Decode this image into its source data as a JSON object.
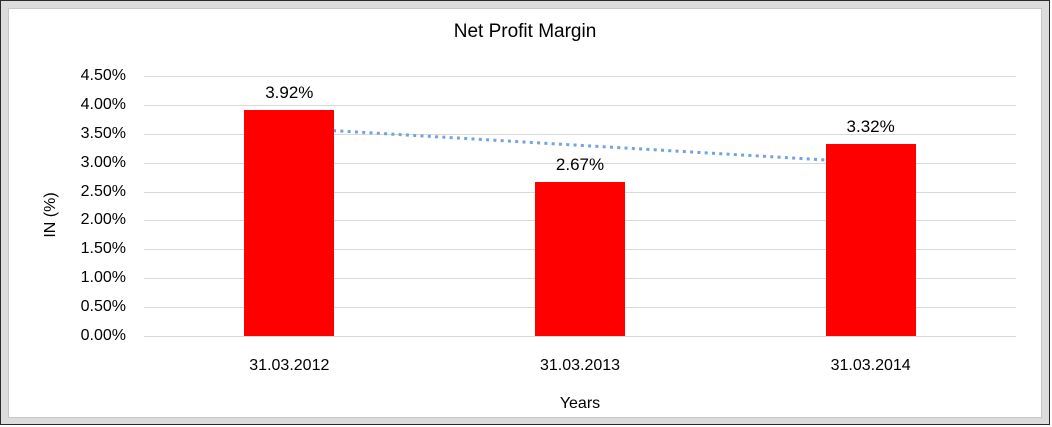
{
  "chart_data": {
    "type": "bar",
    "title": "Net Profit Margin",
    "categories": [
      "31.03.2012",
      "31.03.2013",
      "31.03.2014"
    ],
    "values": [
      3.92,
      2.67,
      3.32
    ],
    "data_labels": [
      "3.92%",
      "2.67%",
      "3.32%"
    ],
    "xlabel": "Years",
    "ylabel": "IN (%)",
    "ylim": [
      0,
      4.5
    ],
    "ytick_step": 0.5,
    "ytick_labels": [
      "0.00%",
      "0.50%",
      "1.00%",
      "1.50%",
      "2.00%",
      "2.50%",
      "3.00%",
      "3.50%",
      "4.00%",
      "4.50%"
    ],
    "grid": true,
    "legend": "none",
    "bar_color": "#ff0000",
    "gridline_color": "#d9d9d9",
    "trendline": {
      "type": "linear",
      "style": "dotted",
      "color": "#71a3dc",
      "start_value": 3.6,
      "end_value": 3.0
    }
  }
}
